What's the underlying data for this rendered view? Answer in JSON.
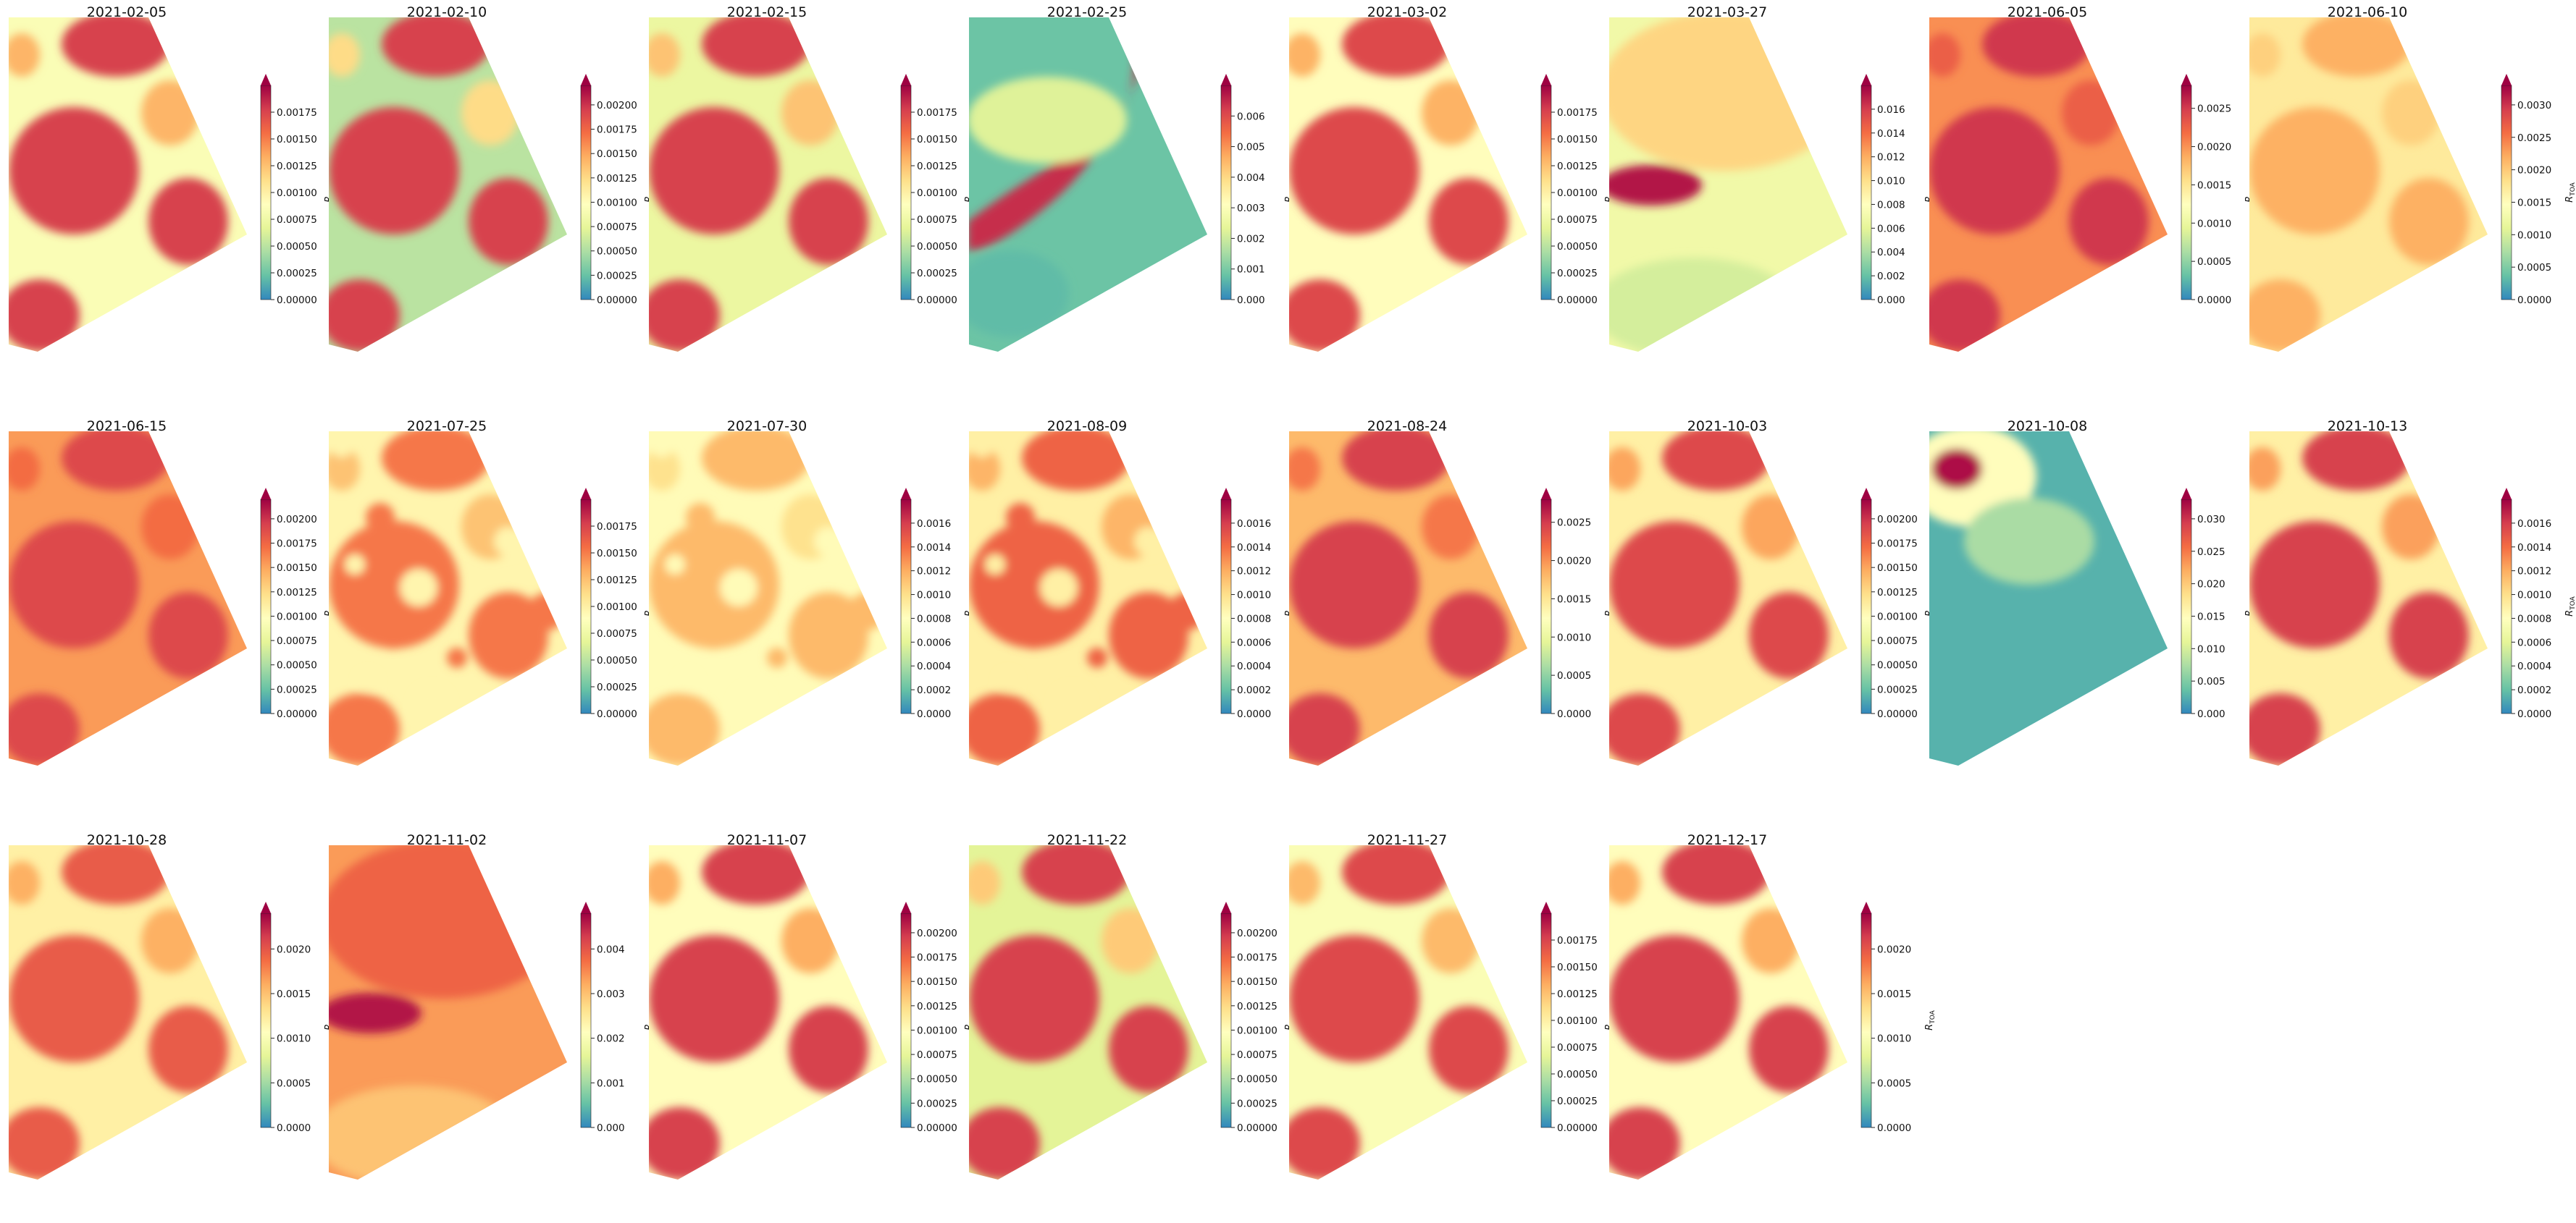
{
  "figure": {
    "colormap": "Spectral_r",
    "colorbar_label": "R",
    "colorbar_label_sub": "TOA",
    "colors": [
      "#3288bd",
      "#66c2a5",
      "#abdda4",
      "#e6f598",
      "#ffffbf",
      "#fee08b",
      "#fdae61",
      "#f46d43",
      "#d53e4f",
      "#9e0142"
    ]
  },
  "panels": [
    {
      "date": "2021-02-05",
      "ticks": [
        "0.00000",
        "0.00025",
        "0.00050",
        "0.00075",
        "0.00100",
        "0.00125",
        "0.00150",
        "0.00175"
      ],
      "vmax": 0.002,
      "bg_level": 0.42,
      "fg_level": 0.88,
      "style": "river"
    },
    {
      "date": "2021-02-10",
      "ticks": [
        "0.00000",
        "0.00025",
        "0.00050",
        "0.00075",
        "0.00100",
        "0.00125",
        "0.00150",
        "0.00175",
        "0.00200"
      ],
      "vmax": 0.0022,
      "bg_level": 0.25,
      "fg_level": 0.88,
      "style": "river"
    },
    {
      "date": "2021-02-15",
      "ticks": [
        "0.00000",
        "0.00025",
        "0.00050",
        "0.00075",
        "0.00100",
        "0.00125",
        "0.00150",
        "0.00175"
      ],
      "vmax": 0.002,
      "bg_level": 0.36,
      "fg_level": 0.88,
      "style": "river"
    },
    {
      "date": "2021-02-25",
      "ticks": [
        "0.000",
        "0.001",
        "0.002",
        "0.003",
        "0.004",
        "0.005",
        "0.006"
      ],
      "vmax": 0.007,
      "bg_level": 0.12,
      "fg_level": 0.28,
      "style": "cloudy"
    },
    {
      "date": "2021-03-02",
      "ticks": [
        "0.00000",
        "0.00025",
        "0.00050",
        "0.00075",
        "0.00100",
        "0.00125",
        "0.00150",
        "0.00175"
      ],
      "vmax": 0.002,
      "bg_level": 0.45,
      "fg_level": 0.86,
      "style": "river"
    },
    {
      "date": "2021-03-27",
      "ticks": [
        "0.000",
        "0.002",
        "0.004",
        "0.006",
        "0.008",
        "0.010",
        "0.012",
        "0.014",
        "0.016"
      ],
      "vmax": 0.018,
      "bg_level": 0.38,
      "fg_level": 0.58,
      "style": "hazy"
    },
    {
      "date": "2021-06-05",
      "ticks": [
        "0.0000",
        "0.0005",
        "0.0010",
        "0.0015",
        "0.0020",
        "0.0025"
      ],
      "vmax": 0.0028,
      "bg_level": 0.72,
      "fg_level": 0.9,
      "style": "river"
    },
    {
      "date": "2021-06-10",
      "ticks": [
        "0.0000",
        "0.0005",
        "0.0010",
        "0.0015",
        "0.0020",
        "0.0025",
        "0.0030"
      ],
      "vmax": 0.0033,
      "bg_level": 0.52,
      "fg_level": 0.66,
      "style": "river"
    },
    {
      "date": "2021-06-15",
      "ticks": [
        "0.00000",
        "0.00025",
        "0.00050",
        "0.00075",
        "0.00100",
        "0.00125",
        "0.00150",
        "0.00175",
        "0.00200"
      ],
      "vmax": 0.0022,
      "bg_level": 0.7,
      "fg_level": 0.86,
      "style": "river"
    },
    {
      "date": "2021-07-25",
      "ticks": [
        "0.00000",
        "0.00025",
        "0.00050",
        "0.00075",
        "0.00100",
        "0.00125",
        "0.00150",
        "0.00175"
      ],
      "vmax": 0.002,
      "bg_level": 0.48,
      "fg_level": 0.76,
      "style": "patchy"
    },
    {
      "date": "2021-07-30",
      "ticks": [
        "0.0000",
        "0.0002",
        "0.0004",
        "0.0006",
        "0.0008",
        "0.0010",
        "0.0012",
        "0.0014",
        "0.0016"
      ],
      "vmax": 0.0018,
      "bg_level": 0.46,
      "fg_level": 0.64,
      "style": "patchy"
    },
    {
      "date": "2021-08-09",
      "ticks": [
        "0.0000",
        "0.0002",
        "0.0004",
        "0.0006",
        "0.0008",
        "0.0010",
        "0.0012",
        "0.0014",
        "0.0016"
      ],
      "vmax": 0.0018,
      "bg_level": 0.5,
      "fg_level": 0.8,
      "style": "patchy"
    },
    {
      "date": "2021-08-24",
      "ticks": [
        "0.0000",
        "0.0005",
        "0.0010",
        "0.0015",
        "0.0020",
        "0.0025"
      ],
      "vmax": 0.0028,
      "bg_level": 0.64,
      "fg_level": 0.88,
      "style": "river"
    },
    {
      "date": "2021-10-03",
      "ticks": [
        "0.00000",
        "0.00025",
        "0.00050",
        "0.00075",
        "0.00100",
        "0.00125",
        "0.00150",
        "0.00175",
        "0.00200"
      ],
      "vmax": 0.0022,
      "bg_level": 0.5,
      "fg_level": 0.86,
      "style": "river"
    },
    {
      "date": "2021-10-08",
      "ticks": [
        "0.000",
        "0.005",
        "0.010",
        "0.015",
        "0.020",
        "0.025",
        "0.030"
      ],
      "vmax": 0.033,
      "bg_level": 0.08,
      "fg_level": 0.3,
      "style": "blue"
    },
    {
      "date": "2021-10-13",
      "ticks": [
        "0.0000",
        "0.0002",
        "0.0004",
        "0.0006",
        "0.0008",
        "0.0010",
        "0.0012",
        "0.0014",
        "0.0016"
      ],
      "vmax": 0.0018,
      "bg_level": 0.5,
      "fg_level": 0.88,
      "style": "river"
    },
    {
      "date": "2021-10-28",
      "ticks": [
        "0.0000",
        "0.0005",
        "0.0010",
        "0.0015",
        "0.0020"
      ],
      "vmax": 0.0024,
      "bg_level": 0.5,
      "fg_level": 0.82,
      "style": "river"
    },
    {
      "date": "2021-11-02",
      "ticks": [
        "0.000",
        "0.001",
        "0.002",
        "0.003",
        "0.004"
      ],
      "vmax": 0.0048,
      "bg_level": 0.7,
      "fg_level": 0.8,
      "style": "hazy"
    },
    {
      "date": "2021-11-07",
      "ticks": [
        "0.00000",
        "0.00025",
        "0.00050",
        "0.00075",
        "0.00100",
        "0.00125",
        "0.00150",
        "0.00175",
        "0.00200"
      ],
      "vmax": 0.0022,
      "bg_level": 0.45,
      "fg_level": 0.88,
      "style": "river"
    },
    {
      "date": "2021-11-22",
      "ticks": [
        "0.00000",
        "0.00025",
        "0.00050",
        "0.00075",
        "0.00100",
        "0.00125",
        "0.00150",
        "0.00175",
        "0.00200"
      ],
      "vmax": 0.0022,
      "bg_level": 0.33,
      "fg_level": 0.88,
      "style": "river"
    },
    {
      "date": "2021-11-27",
      "ticks": [
        "0.00000",
        "0.00025",
        "0.00050",
        "0.00075",
        "0.00100",
        "0.00125",
        "0.00150",
        "0.00175"
      ],
      "vmax": 0.002,
      "bg_level": 0.42,
      "fg_level": 0.86,
      "style": "river"
    },
    {
      "date": "2021-12-17",
      "ticks": [
        "0.0000",
        "0.0005",
        "0.0010",
        "0.0015",
        "0.0020"
      ],
      "vmax": 0.0024,
      "bg_level": 0.45,
      "fg_level": 0.88,
      "style": "river"
    }
  ]
}
